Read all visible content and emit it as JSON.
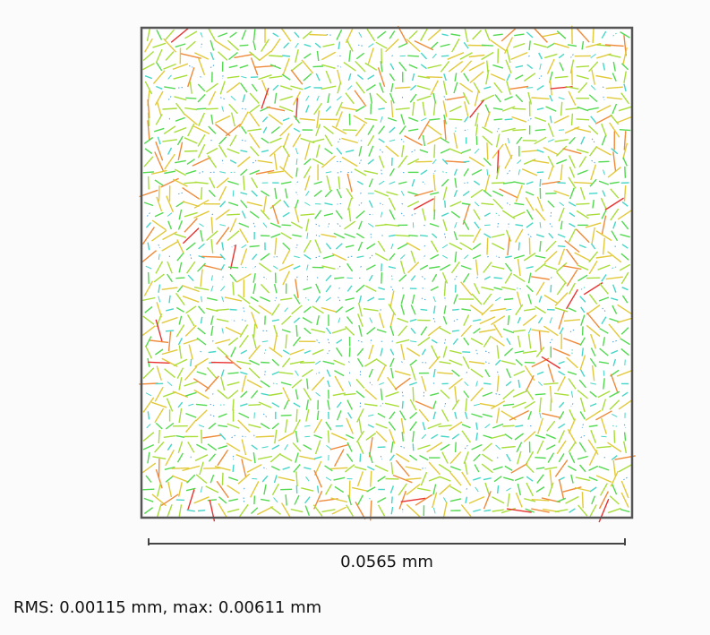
{
  "chart_data": {
    "type": "quiver",
    "title": "",
    "xlabel": "",
    "ylabel": "",
    "grid": false,
    "scale_bar_label": "0.0565 mm",
    "stats_text": "RMS: 0.00115 mm, max: 0.00611 mm",
    "rms_mm": 0.00115,
    "max_mm": 0.00611,
    "field_width_mm": 0.0565,
    "color_scale": [
      "#4aa3df",
      "#45d6c8",
      "#52d94f",
      "#a8dd3a",
      "#e2c93a",
      "#ef8a3a",
      "#e8322f"
    ]
  }
}
